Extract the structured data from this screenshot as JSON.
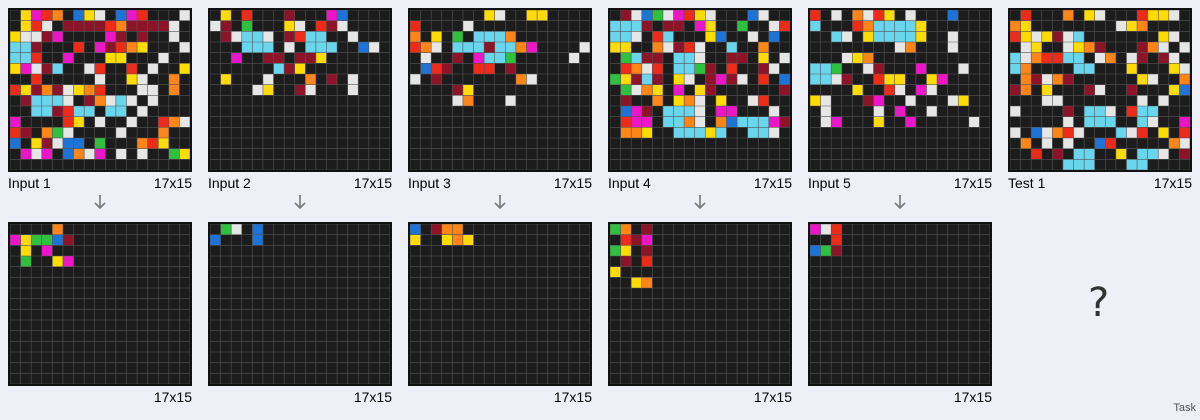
{
  "palette": {
    "0": "#1c1c1c",
    "1": "#1e73d6",
    "2": "#ee2a18",
    "3": "#30c040",
    "4": "#ffdc00",
    "5": "#a8a8a8",
    "6": "#ee14c8",
    "7": "#ff8616",
    "8": "#6ad6ee",
    "9": "#8c1428",
    "W": "#e6e6e6"
  },
  "pairs": [
    {
      "input_label": "Input 1",
      "input_size": "17x15",
      "output_size": "17x15",
      "input": [
        "04627014W0162000W",
        "042W09999279999W0",
        "4WW960000690900W0",
        "8890002069274000W",
        "88200600044000W00",
        "46W9800W20020W004",
        "00200000W004W0070",
        "24979W472000WW070",
        "09888W097W8W0W000",
        "008892880880W0000",
        "60000240W00W0027W",
        "29073W0000W000700",
        "1049W110300072400",
        "06W6017W60W0W0034",
        "00000000000000000"
      ],
      "output": [
        "00007000000000000",
        "64331900000000000",
        "04060000000000000",
        "03004600000000000",
        "00000000000000000",
        "00000000000000000",
        "00000000000000000",
        "00000000000000000",
        "00000000000000000",
        "00000000000000000",
        "00000000000000000",
        "00000000000000000",
        "00000000000000000",
        "00000000000000000",
        "00000000000000000"
      ]
    },
    {
      "input_label": "Input 2",
      "input_size": "17x15",
      "output_size": "17x15",
      "input": [
        "04020009000610000",
        "W9030004W029W0000",
        "09W88W0928800W000",
        "0008880W0888001W0",
        "00600990994000000",
        "00000089400000000",
        "04000W0007090W000",
        "0000W4009W000W000",
        "00000000000000000",
        "00000000000000000",
        "00000000000000000",
        "00000000000000000",
        "00000000000000000",
        "00000000000000000",
        "00000000000000000"
      ],
      "output": [
        "03W01000000000000",
        "10001000000000000",
        "00000000000000000",
        "00000000000000000",
        "00000000000000000",
        "00000000000000000",
        "00000000000000000",
        "00000000000000000",
        "00000000000000000",
        "00000000000000000",
        "00000000000000000",
        "00000000000000000",
        "00000000000000000",
        "00000000000000000",
        "00000000000000000"
      ]
    },
    {
      "input_label": "Input 3",
      "input_size": "17x15",
      "output_size": "17x15",
      "input": [
        "00000004W00440000",
        "20000W00000000000",
        "70403088870000000",
        "27W0888988760000W",
        "0W0090688300000W0",
        "01290022090000000",
        "W0900000007W00000",
        "00009400000000000",
        "0000W7000W0000000",
        "00000000000000000",
        "00000000000000000",
        "00000000000000000",
        "00000000000000000",
        "00000000000000000",
        "00000000000000000"
      ],
      "output": [
        "10977000000000000",
        "40047400000000000",
        "00000000000000000",
        "00000000000000000",
        "00000000000000000",
        "00000000000000000",
        "00000000000000000",
        "00000000000000000",
        "00000000000000000",
        "00000000000000000",
        "00000000000000000",
        "00000000000000000",
        "00000000000000000",
        "00000000000000000",
        "00000000000000000"
      ]
    },
    {
      "input_label": "Input 4",
      "input_size": "17x15",
      "output_size": "17x15",
      "input": [
        "09W13W624W0001W00",
        "888909906400300W2",
        "88W0280004100W010",
        "44007W92W00800700",
        "03899088W0099040W",
        "027W20883902009W0",
        "3498904W0969W0201",
        "03W74060490000009",
        "09007047W0400W200",
        "01690888W066000W0",
        "02660887W07188869",
        "077400888480088W0",
        "00000000000000000",
        "00000000000000000",
        "00000000000000000"
      ],
      "output": [
        "37090000000000000",
        "02960000000000000",
        "34090000000000000",
        "09020000000000000",
        "40000000000000000",
        "00470000000000000",
        "00000000000000000",
        "00000000000000000",
        "00000000000000000",
        "00000000000000000",
        "00000000000000000",
        "00000000000000000",
        "00000000000000000",
        "00000000000000000",
        "00000000000000000"
      ]
    },
    {
      "input_label": "Input 5",
      "input_size": "17x15",
      "output_size": "17x15",
      "input": [
        "20W07W240W0001000",
        "80002788884000000",
        "008W048888400W000",
        "00000000W7000W000",
        "000W4700000000000",
        "88300W90006000W00",
        "88W90024400460000",
        "00004002W06W00000",
        "4W0009600W000W400",
        "0W0000W0600W00000",
        "0W6000400600000W0",
        "00000000000000000",
        "00000000000000000",
        "00000000000000000",
        "00000000000000000"
      ],
      "output": [
        "6W200000000000000",
        "00200000000000000",
        "13900000000000000",
        "00000000000000000",
        "00000000000000000",
        "00000000000000000",
        "00000000000000000",
        "00000000000000000",
        "00000000000000000",
        "00000000000000000",
        "00000000000000000",
        "00000000000000000",
        "00000000000000000",
        "00000000000000000",
        "00000000000000000"
      ]
    }
  ],
  "test": {
    "label": "Test 1",
    "size": "17x15",
    "input": [
      "02000704W000244W0",
      "7400000000W470000",
      "24W49W800000004W0",
      "0W400W47900097W0W",
      "8W722880W70W909W0",
      "8700008800040004W",
      "079W790000004W007",
      "97040009W00900041",
      "000WW0000000W0W00",
      "W00009088W0288000",
      "00000W0888008W006",
      "W01W72W0008W20402",
      "070W0W0012000007W",
      "00209088004088W09",
      "00000888000880000"
    ],
    "output_placeholder": "?"
  },
  "footer": {
    "task_label": "Task"
  }
}
